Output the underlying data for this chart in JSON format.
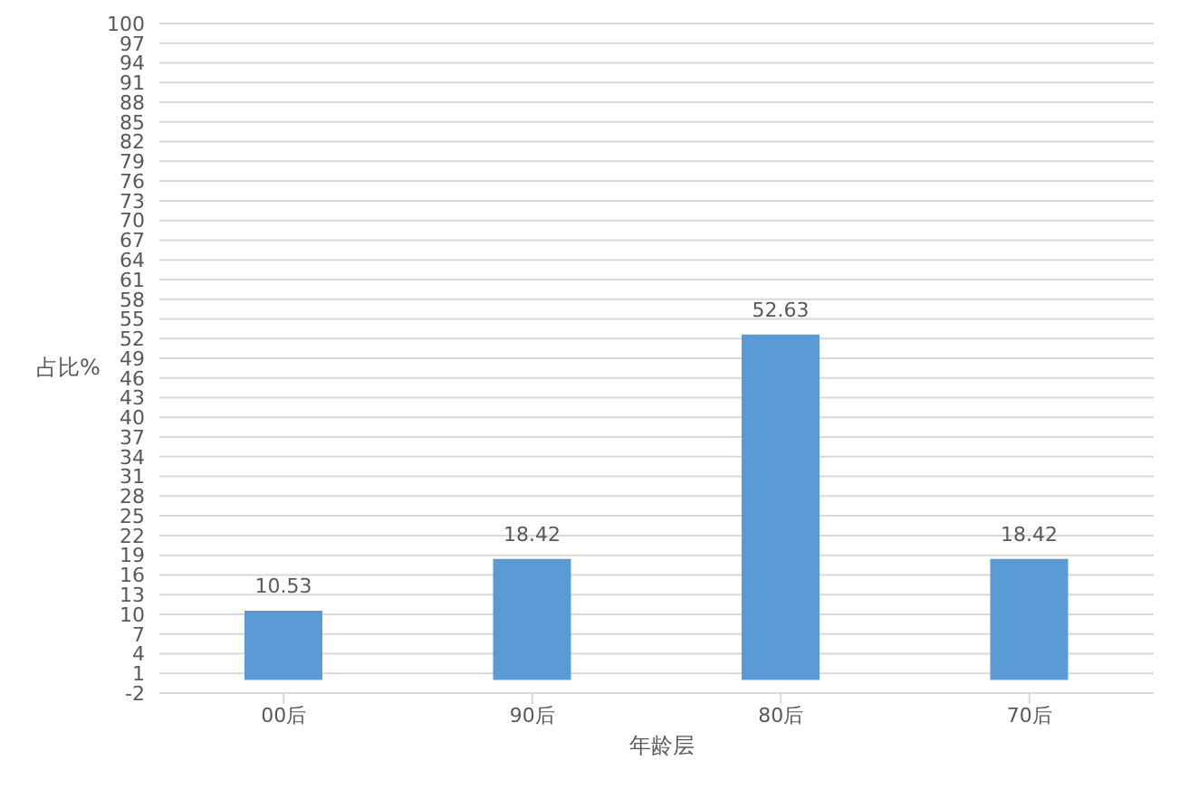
{
  "chart_data": {
    "type": "bar",
    "xlabel": "年龄层",
    "ylabel": "占比%",
    "categories": [
      "00后",
      "90后",
      "80后",
      "70后"
    ],
    "values": [
      10.53,
      18.42,
      52.63,
      18.42
    ],
    "color": "#5b9bd5",
    "data_labels": true,
    "grid": "y",
    "ylim": [
      -2,
      100
    ],
    "yticks": [
      -2,
      1,
      4,
      7,
      10,
      13,
      16,
      19,
      22,
      25,
      28,
      31,
      34,
      37,
      40,
      43,
      46,
      49,
      52,
      55,
      58,
      61,
      64,
      67,
      70,
      73,
      76,
      79,
      82,
      85,
      88,
      91,
      94,
      97,
      100
    ]
  }
}
